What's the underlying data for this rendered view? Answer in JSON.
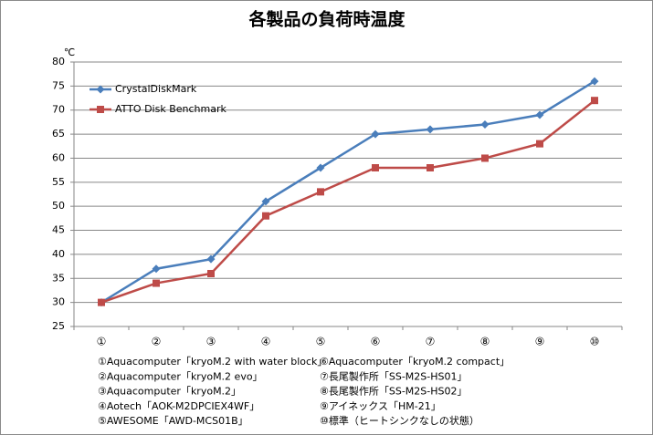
{
  "chart_data": {
    "type": "line",
    "title": "各製品の負荷時温度",
    "y_label": "℃",
    "categories": [
      "①",
      "②",
      "③",
      "④",
      "⑤",
      "⑥",
      "⑦",
      "⑧",
      "⑨",
      "⑩"
    ],
    "series": [
      {
        "name": "CrystalDiskMark",
        "color": "#4a7ebb",
        "marker": "diamond",
        "values": [
          30,
          37,
          39,
          51,
          58,
          65,
          66,
          67,
          69,
          76
        ]
      },
      {
        "name": "ATTO Disk Benchmark",
        "color": "#be4b48",
        "marker": "square",
        "values": [
          30,
          34,
          36,
          48,
          53,
          58,
          58,
          60,
          63,
          72
        ]
      }
    ],
    "ylim": [
      25,
      80
    ],
    "yticks": [
      25,
      30,
      35,
      40,
      45,
      50,
      55,
      60,
      65,
      70,
      75,
      80
    ],
    "grid": true,
    "legend": "upper left",
    "annotations": [
      "①Aquacomputer「kryoM.2 with water block」",
      "②Aquacomputer「kryoM.2 evo」",
      "③Aquacomputer「kryoM.2」",
      "④Aotech「AOK-M2DPCIEX4WF」",
      "⑤AWESOME「AWD-MCS01B」",
      "⑥Aquacomputer「kryoM.2 compact」",
      "⑦長尾製作所「SS-M2S-HS01」",
      "⑧長尾製作所「SS-M2S-HS02」",
      "⑨アイネックス「HM-21」",
      "⑩標準（ヒートシンクなしの状態）"
    ]
  }
}
